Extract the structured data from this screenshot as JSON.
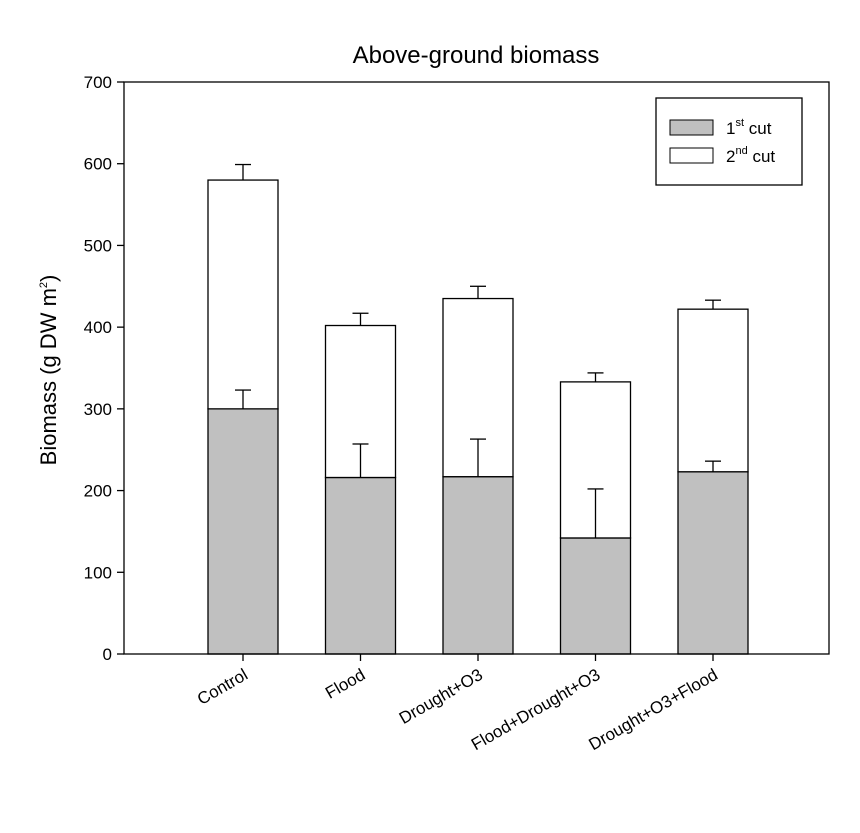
{
  "chart_data": {
    "type": "bar",
    "stacked": true,
    "title": "Above-ground biomass",
    "ylabel": {
      "main": "Biomass (g DW m",
      "sup": "2",
      "close": ")"
    },
    "xlabel": "",
    "ylim": [
      0,
      700
    ],
    "yticks": [
      "0",
      "100",
      "200",
      "300",
      "400",
      "500",
      "600",
      "700"
    ],
    "categories": [
      "Control",
      "Flood",
      "Drought+O3",
      "Flood+Drought+O3",
      "Drought+O3+Flood"
    ],
    "series": [
      {
        "name": "1st cut",
        "legend": {
          "main": "1",
          "sup": "st",
          "rest": " cut"
        },
        "color": "#c0c0c0",
        "values": [
          300,
          216,
          217,
          142,
          223
        ],
        "error": [
          23,
          41,
          46,
          60,
          13
        ]
      },
      {
        "name": "2nd cut",
        "legend": {
          "main": "2",
          "sup": "nd",
          "rest": " cut"
        },
        "color": "#ffffff",
        "values": [
          280,
          186,
          218,
          191,
          199
        ],
        "error": [
          19,
          15,
          15,
          11,
          11
        ]
      }
    ],
    "legend_position": "top-right",
    "grid": false
  }
}
